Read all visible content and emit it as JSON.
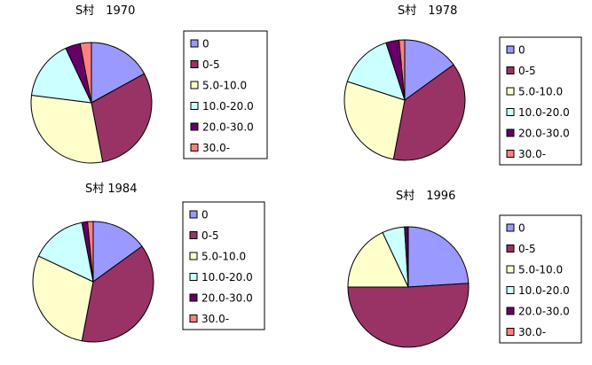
{
  "legend_labels": [
    "0",
    "0-5",
    "5.0-10.0",
    "10.0-20.0",
    "20.0-30.0",
    "30.0-"
  ],
  "colors": [
    "#9999ff",
    "#993366",
    "#ffffcc",
    "#ccffff",
    "#660066",
    "#ff8080"
  ],
  "chart_data": [
    {
      "type": "pie",
      "title": "S村　1970",
      "categories": [
        "0",
        "0-5",
        "5.0-10.0",
        "10.0-20.0",
        "20.0-30.0",
        "30.0-"
      ],
      "values": [
        17,
        30,
        30,
        16,
        4,
        3
      ]
    },
    {
      "type": "pie",
      "title": "S村　1978",
      "categories": [
        "0",
        "0-5",
        "5.0-10.0",
        "10.0-20.0",
        "20.0-30.0",
        "30.0-"
      ],
      "values": [
        15,
        38,
        27,
        15,
        3.5,
        1.5
      ]
    },
    {
      "type": "pie",
      "title": "S村 1984",
      "categories": [
        "0",
        "0-5",
        "5.0-10.0",
        "10.0-20.0",
        "20.0-30.0",
        "30.0-"
      ],
      "values": [
        15,
        38,
        29,
        15,
        1.5,
        1.5
      ]
    },
    {
      "type": "pie",
      "title": "S村　1996",
      "categories": [
        "0",
        "0-5",
        "5.0-10.0",
        "10.0-20.0",
        "20.0-30.0",
        "30.0-"
      ],
      "values": [
        24,
        51,
        18,
        6,
        0.8,
        0.2
      ]
    }
  ]
}
